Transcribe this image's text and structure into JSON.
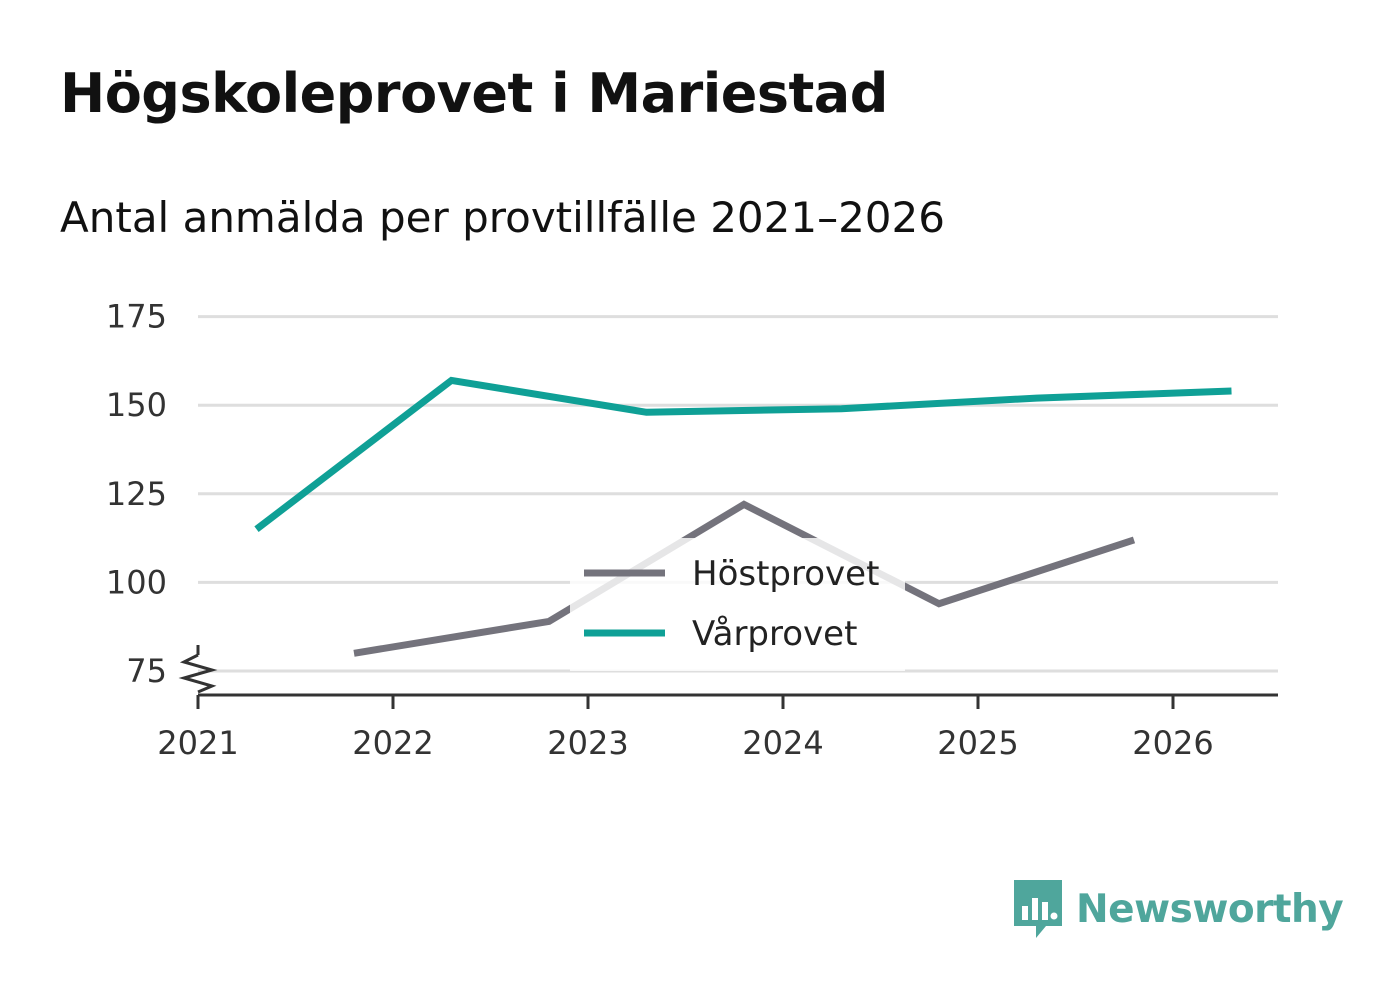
{
  "title": "Högskoleprovet i Mariestad",
  "subtitle": "Antal anmälda per provtillfälle 2021–2026",
  "brand": {
    "name": "Newsworthy",
    "color": "#4fa69c",
    "logo_icon": "bar-chart-speech-bubble-icon"
  },
  "chart_data": {
    "type": "line",
    "x_ticks": [
      "2021",
      "2022",
      "2023",
      "2024",
      "2025",
      "2026"
    ],
    "y_ticks": [
      "75",
      "100",
      "125",
      "150",
      "175"
    ],
    "y_tick_values": [
      75,
      100,
      125,
      150,
      175
    ],
    "xlim": [
      2021,
      2026.55
    ],
    "ylim": [
      69,
      175
    ],
    "grid": "horizontal",
    "axis_break": true,
    "legend_position": "center",
    "series": [
      {
        "name": "Höstprovet",
        "color": "#74737c",
        "x": [
          2021.8,
          2022.8,
          2023.8,
          2024.8,
          2025.8
        ],
        "values": [
          80,
          89,
          122,
          94,
          112
        ]
      },
      {
        "name": "Vårprovet",
        "color": "#0fa096",
        "x": [
          2021.3,
          2022.3,
          2023.3,
          2024.3,
          2025.3,
          2026.3
        ],
        "values": [
          115,
          157,
          148,
          149,
          152,
          154
        ]
      }
    ]
  }
}
